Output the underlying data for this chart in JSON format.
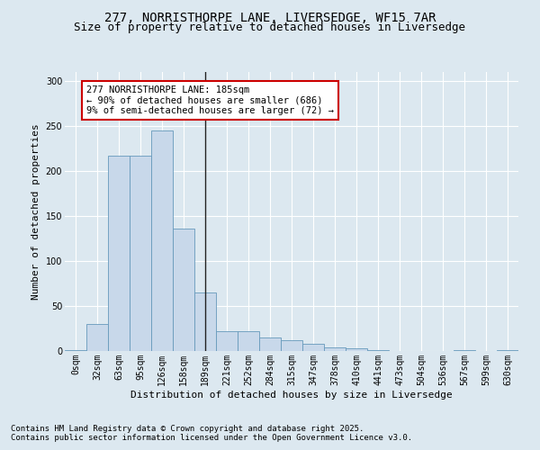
{
  "title1": "277, NORRISTHORPE LANE, LIVERSEDGE, WF15 7AR",
  "title2": "Size of property relative to detached houses in Liversedge",
  "xlabel": "Distribution of detached houses by size in Liversedge",
  "ylabel": "Number of detached properties",
  "categories": [
    "0sqm",
    "32sqm",
    "63sqm",
    "95sqm",
    "126sqm",
    "158sqm",
    "189sqm",
    "221sqm",
    "252sqm",
    "284sqm",
    "315sqm",
    "347sqm",
    "378sqm",
    "410sqm",
    "441sqm",
    "473sqm",
    "504sqm",
    "536sqm",
    "567sqm",
    "599sqm",
    "630sqm"
  ],
  "values": [
    1,
    30,
    217,
    217,
    245,
    136,
    65,
    22,
    22,
    15,
    12,
    8,
    4,
    3,
    1,
    0,
    0,
    0,
    1,
    0,
    1
  ],
  "bar_color": "#c8d8ea",
  "bar_edge_color": "#6699bb",
  "highlight_bar_index": 6,
  "highlight_line_color": "#222222",
  "annotation_text": "277 NORRISTHORPE LANE: 185sqm\n← 90% of detached houses are smaller (686)\n9% of semi-detached houses are larger (72) →",
  "annotation_box_color": "#ffffff",
  "annotation_border_color": "#cc0000",
  "ylim": [
    0,
    310
  ],
  "yticks": [
    0,
    50,
    100,
    150,
    200,
    250,
    300
  ],
  "background_color": "#dce8f0",
  "grid_color": "#ffffff",
  "footer_line1": "Contains HM Land Registry data © Crown copyright and database right 2025.",
  "footer_line2": "Contains public sector information licensed under the Open Government Licence v3.0.",
  "title1_fontsize": 10,
  "title2_fontsize": 9,
  "xlabel_fontsize": 8,
  "ylabel_fontsize": 8,
  "tick_fontsize": 7,
  "annotation_fontsize": 7.5,
  "footer_fontsize": 6.5
}
